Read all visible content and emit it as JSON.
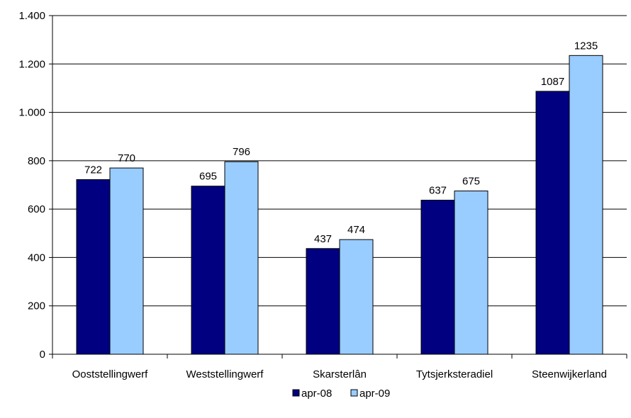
{
  "chart_data": {
    "type": "bar",
    "categories": [
      "Ooststellingwerf",
      "Weststellingwerf",
      "Skarsterlân",
      "Tytsjerksteradiel",
      "Steenwijkerland"
    ],
    "series": [
      {
        "name": "apr-08",
        "values": [
          722,
          695,
          437,
          637,
          1087
        ],
        "color": "#000080"
      },
      {
        "name": "apr-09",
        "values": [
          770,
          796,
          474,
          675,
          1235
        ],
        "color": "#99CCFF"
      }
    ],
    "ylim": [
      0,
      1400
    ],
    "yticks": [
      0,
      200,
      400,
      600,
      800,
      1000,
      1200,
      1400
    ],
    "ytick_labels": [
      "0",
      "200",
      "400",
      "600",
      "800",
      "1.000",
      "1.200",
      "1.400"
    ],
    "grid": true,
    "legend_position": "bottom"
  }
}
